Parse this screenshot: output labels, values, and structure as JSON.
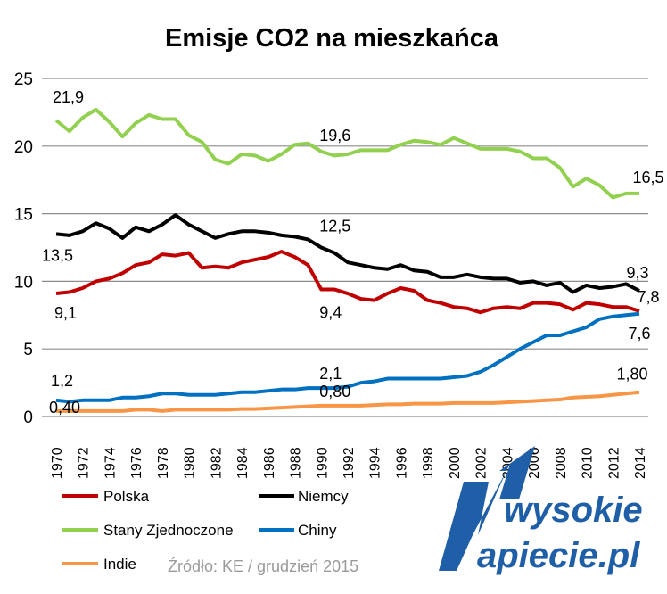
{
  "chart_data": {
    "type": "line",
    "title": "Emisje CO2 na mieszkańca",
    "xlabel": "",
    "ylabel": "",
    "ylim": [
      0,
      25
    ],
    "yticks": [
      "0",
      "5",
      "10",
      "15",
      "20",
      "25"
    ],
    "grid": true,
    "legend_placement": "bottom",
    "x": [
      1970,
      1971,
      1972,
      1973,
      1974,
      1975,
      1976,
      1977,
      1978,
      1979,
      1980,
      1981,
      1982,
      1983,
      1984,
      1985,
      1986,
      1987,
      1988,
      1989,
      1990,
      1991,
      1992,
      1993,
      1994,
      1995,
      1996,
      1997,
      1998,
      1999,
      2000,
      2001,
      2002,
      2003,
      2004,
      2005,
      2006,
      2007,
      2008,
      2009,
      2010,
      2011,
      2012,
      2013,
      2014
    ],
    "series": [
      {
        "name": "Polska",
        "color": "#C00000",
        "values": [
          9.1,
          9.2,
          9.5,
          10.0,
          10.2,
          10.6,
          11.2,
          11.4,
          12.0,
          11.9,
          12.1,
          11.0,
          11.1,
          11.0,
          11.4,
          11.6,
          11.8,
          12.2,
          11.8,
          11.2,
          9.4,
          9.4,
          9.1,
          8.7,
          8.6,
          9.1,
          9.5,
          9.3,
          8.6,
          8.4,
          8.1,
          8.0,
          7.7,
          8.0,
          8.1,
          8.0,
          8.4,
          8.4,
          8.3,
          7.9,
          8.4,
          8.3,
          8.1,
          8.1,
          7.8
        ],
        "labels": [
          "9,1",
          "9,4",
          "7,8"
        ]
      },
      {
        "name": "Niemcy",
        "color": "#000000",
        "values": [
          13.5,
          13.4,
          13.7,
          14.3,
          13.9,
          13.2,
          14.0,
          13.7,
          14.2,
          14.9,
          14.2,
          13.7,
          13.2,
          13.5,
          13.7,
          13.7,
          13.6,
          13.4,
          13.3,
          13.1,
          12.5,
          12.1,
          11.4,
          11.2,
          11.0,
          10.9,
          11.2,
          10.8,
          10.7,
          10.3,
          10.3,
          10.5,
          10.3,
          10.2,
          10.2,
          9.9,
          10.0,
          9.7,
          9.9,
          9.2,
          9.7,
          9.5,
          9.6,
          9.8,
          9.3
        ],
        "labels": [
          "13,5",
          "12,5",
          "9,3"
        ]
      },
      {
        "name": "Stany Zjednoczone",
        "color": "#92D050",
        "values": [
          21.9,
          21.1,
          22.1,
          22.7,
          21.8,
          20.7,
          21.7,
          22.3,
          22.0,
          22.0,
          20.8,
          20.3,
          19.0,
          18.7,
          19.4,
          19.3,
          18.9,
          19.4,
          20.1,
          20.2,
          19.6,
          19.3,
          19.4,
          19.7,
          19.7,
          19.7,
          20.1,
          20.4,
          20.3,
          20.1,
          20.6,
          20.2,
          19.8,
          19.8,
          19.8,
          19.6,
          19.1,
          19.1,
          18.4,
          17.0,
          17.6,
          17.1,
          16.2,
          16.5,
          16.5
        ],
        "labels": [
          "21,9",
          "19,6",
          "16,5"
        ]
      },
      {
        "name": "Chiny",
        "color": "#0070C0",
        "values": [
          1.2,
          1.1,
          1.2,
          1.2,
          1.2,
          1.4,
          1.4,
          1.5,
          1.7,
          1.7,
          1.6,
          1.6,
          1.6,
          1.7,
          1.8,
          1.8,
          1.9,
          2.0,
          2.0,
          2.1,
          2.1,
          2.1,
          2.2,
          2.5,
          2.6,
          2.8,
          2.8,
          2.8,
          2.8,
          2.8,
          2.9,
          3.0,
          3.3,
          3.8,
          4.4,
          5.0,
          5.5,
          6.0,
          6.0,
          6.3,
          6.6,
          7.2,
          7.4,
          7.5,
          7.6
        ],
        "labels": [
          "1,2",
          "2,1",
          "7,6"
        ]
      },
      {
        "name": "Indie",
        "color": "#F79646",
        "values": [
          0.4,
          0.4,
          0.4,
          0.4,
          0.4,
          0.4,
          0.5,
          0.5,
          0.4,
          0.5,
          0.5,
          0.5,
          0.5,
          0.5,
          0.55,
          0.55,
          0.6,
          0.65,
          0.7,
          0.75,
          0.8,
          0.8,
          0.8,
          0.8,
          0.85,
          0.9,
          0.9,
          0.95,
          0.95,
          0.95,
          1.0,
          1.0,
          1.0,
          1.0,
          1.05,
          1.1,
          1.15,
          1.2,
          1.25,
          1.4,
          1.45,
          1.5,
          1.6,
          1.7,
          1.8
        ],
        "labels": [
          "0,40",
          "0,80",
          "1,80"
        ]
      }
    ],
    "label_years": [
      1970,
      1990,
      2014
    ],
    "source": "Źródło: KE / grudzień 2015"
  },
  "logo": {
    "line1": "wysokie",
    "line2": "apiecie.pl",
    "color": "#1F5FA8"
  }
}
